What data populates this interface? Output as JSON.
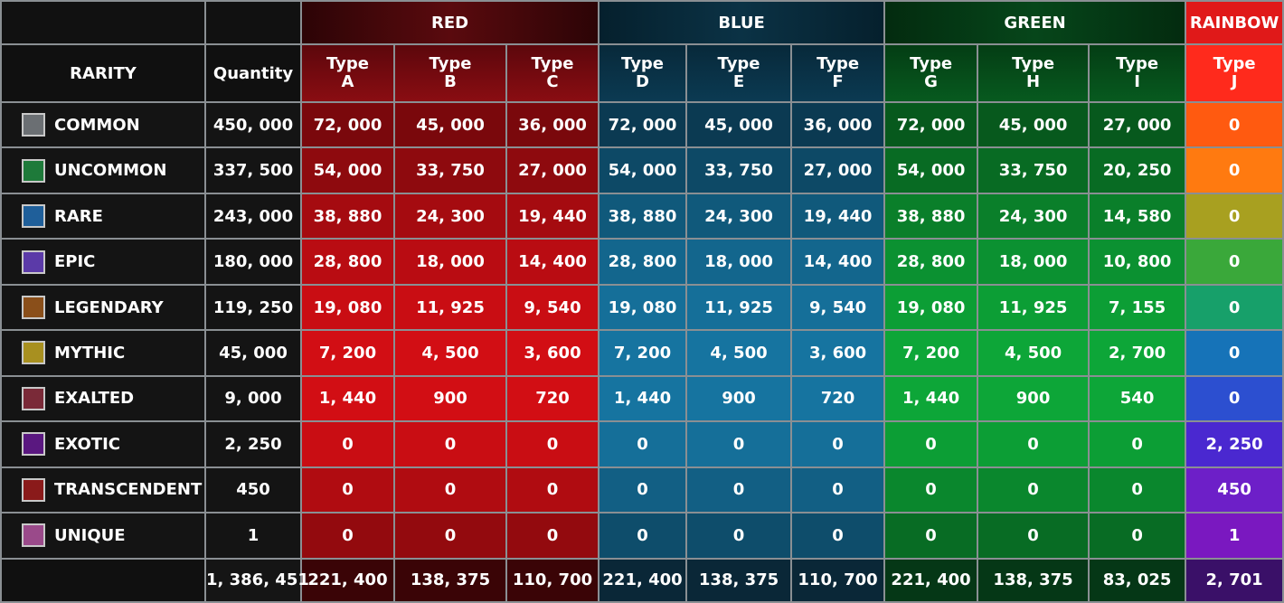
{
  "groups": {
    "red": "RED",
    "blue": "BLUE",
    "green": "GREEN",
    "rainbow": "RAINBOW"
  },
  "headers": {
    "rarity": "RARITY",
    "quantity": "Quantity",
    "type_word": "Type",
    "types": [
      "A",
      "B",
      "C",
      "D",
      "E",
      "F",
      "G",
      "H",
      "I",
      "J"
    ]
  },
  "rows": [
    {
      "name": "COMMON",
      "swatch": "#6b6f73",
      "quantity": "450, 000",
      "values": [
        "72, 000",
        "45, 000",
        "36, 000",
        "72, 000",
        "45, 000",
        "36, 000",
        "72, 000",
        "45, 000",
        "27, 000",
        "0"
      ]
    },
    {
      "name": "UNCOMMON",
      "swatch": "#1e7a3a",
      "quantity": "337, 500",
      "values": [
        "54, 000",
        "33, 750",
        "27, 000",
        "54, 000",
        "33, 750",
        "27, 000",
        "54, 000",
        "33, 750",
        "20, 250",
        "0"
      ]
    },
    {
      "name": "RARE",
      "swatch": "#1f5f9a",
      "quantity": "243, 000",
      "values": [
        "38, 880",
        "24, 300",
        "19, 440",
        "38, 880",
        "24, 300",
        "19, 440",
        "38, 880",
        "24, 300",
        "14, 580",
        "0"
      ]
    },
    {
      "name": "EPIC",
      "swatch": "#5b3aa8",
      "quantity": "180, 000",
      "values": [
        "28, 800",
        "18, 000",
        "14, 400",
        "28, 800",
        "18, 000",
        "14, 400",
        "28, 800",
        "18, 000",
        "10, 800",
        "0"
      ]
    },
    {
      "name": "LEGENDARY",
      "swatch": "#8a4f1a",
      "quantity": "119, 250",
      "values": [
        "19, 080",
        "11, 925",
        "9, 540",
        "19, 080",
        "11, 925",
        "9, 540",
        "19, 080",
        "11, 925",
        "7, 155",
        "0"
      ]
    },
    {
      "name": "MYTHIC",
      "swatch": "#a89020",
      "quantity": "45, 000",
      "values": [
        "7, 200",
        "4, 500",
        "3, 600",
        "7, 200",
        "4, 500",
        "3, 600",
        "7, 200",
        "4, 500",
        "2, 700",
        "0"
      ]
    },
    {
      "name": "EXALTED",
      "swatch": "#7a2a38",
      "quantity": "9, 000",
      "values": [
        "1, 440",
        "900",
        "720",
        "1, 440",
        "900",
        "720",
        "1, 440",
        "900",
        "540",
        "0"
      ]
    },
    {
      "name": "EXOTIC",
      "swatch": "#5a1880",
      "quantity": "2, 250",
      "values": [
        "0",
        "0",
        "0",
        "0",
        "0",
        "0",
        "0",
        "0",
        "0",
        "2, 250"
      ]
    },
    {
      "name": "TRANSCENDENT",
      "swatch": "#8a1a1a",
      "quantity": "450",
      "values": [
        "0",
        "0",
        "0",
        "0",
        "0",
        "0",
        "0",
        "0",
        "0",
        "450"
      ]
    },
    {
      "name": "UNIQUE",
      "swatch": "#9a4a8a",
      "quantity": "1",
      "values": [
        "0",
        "0",
        "0",
        "0",
        "0",
        "0",
        "0",
        "0",
        "0",
        "1"
      ]
    }
  ],
  "totals": {
    "quantity": "1, 386, 451",
    "values": [
      "221, 400",
      "138, 375",
      "110, 700",
      "221, 400",
      "138, 375",
      "110, 700",
      "221, 400",
      "138, 375",
      "83, 025",
      "2, 701"
    ]
  }
}
